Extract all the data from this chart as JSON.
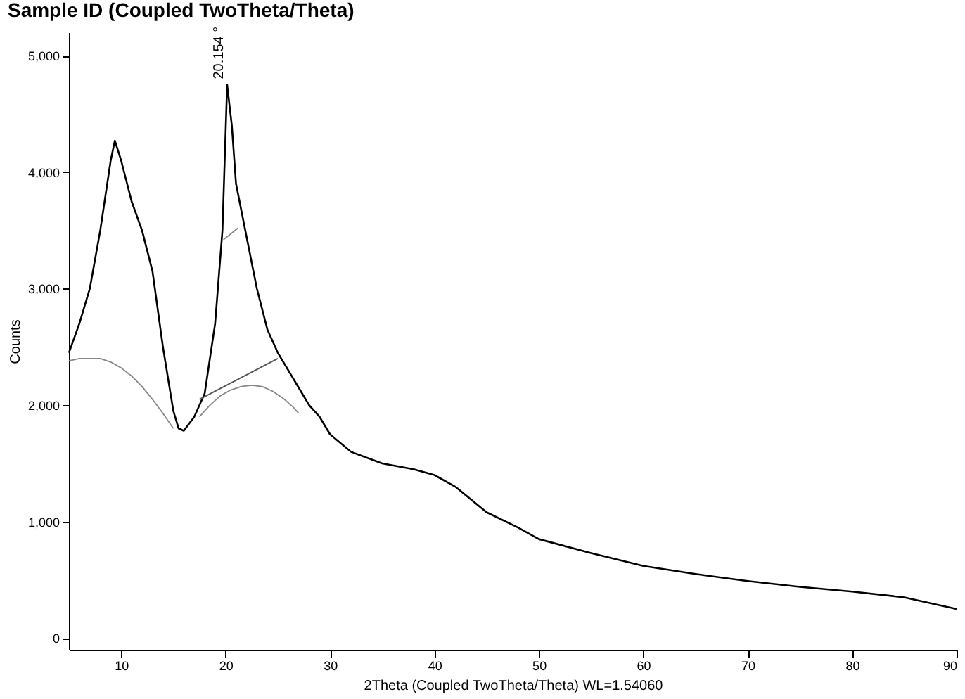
{
  "chart_data": {
    "type": "line",
    "title": "Sample ID (Coupled TwoTheta/Theta)",
    "xlabel": "2Theta (Coupled TwoTheta/Theta) WL=1.54060",
    "ylabel": "Counts",
    "xlim": [
      5,
      90
    ],
    "ylim": [
      -100,
      5200
    ],
    "xticks": [
      10,
      20,
      30,
      40,
      50,
      60,
      70,
      80,
      90
    ],
    "yticks": [
      0,
      {
        "value": 1000,
        "label": "1,000"
      },
      {
        "value": 2000,
        "label": "2,000"
      },
      {
        "value": 3000,
        "label": "3,000"
      },
      {
        "value": 4000,
        "label": "4,000"
      },
      {
        "value": 5000,
        "label": "5,000"
      }
    ],
    "grid": false,
    "marker": "none",
    "line_style": "solid",
    "annotations": [
      {
        "text": "20.154 °",
        "x": 20.154,
        "y": 4750
      }
    ],
    "series": [
      {
        "color": "#000000",
        "x": [
          5,
          6,
          7,
          8,
          9,
          9.4,
          10,
          11,
          12,
          13,
          14,
          15,
          15.5,
          16,
          17,
          18,
          19,
          19.7,
          20.15,
          20.6,
          21,
          22,
          23,
          24,
          25,
          26,
          27,
          28,
          29,
          30,
          32,
          35,
          38,
          40,
          42,
          45,
          48,
          50,
          55,
          60,
          65,
          70,
          75,
          80,
          85,
          90
        ],
        "values": [
          2450,
          2700,
          3000,
          3500,
          4100,
          4270,
          4100,
          3750,
          3500,
          3150,
          2500,
          1950,
          1800,
          1780,
          1900,
          2100,
          2700,
          3500,
          4750,
          4400,
          3900,
          3450,
          3000,
          2650,
          2450,
          2300,
          2150,
          2000,
          1900,
          1750,
          1600,
          1500,
          1450,
          1400,
          1300,
          1080,
          950,
          850,
          730,
          620,
          550,
          490,
          440,
          400,
          350,
          250
        ]
      },
      {
        "color": "#888888",
        "x": [
          5,
          6,
          7,
          8,
          9,
          10,
          11,
          12,
          13,
          14,
          15
        ],
        "values": [
          2380,
          2400,
          2400,
          2400,
          2370,
          2320,
          2250,
          2160,
          2050,
          1930,
          1800
        ]
      },
      {
        "color": "#888888",
        "x": [
          17.5,
          18.5,
          19.5,
          20.5,
          21.5,
          22.5,
          23.5,
          24.5,
          25.5,
          26.5,
          27
        ],
        "values": [
          1900,
          2000,
          2080,
          2130,
          2160,
          2170,
          2160,
          2120,
          2060,
          1980,
          1930
        ]
      },
      {
        "color": "#555555",
        "x": [
          17.5,
          25
        ],
        "values": [
          2050,
          2400
        ]
      },
      {
        "color": "#888888",
        "x": [
          19.8,
          21.2
        ],
        "values": [
          3420,
          3520
        ]
      }
    ]
  }
}
